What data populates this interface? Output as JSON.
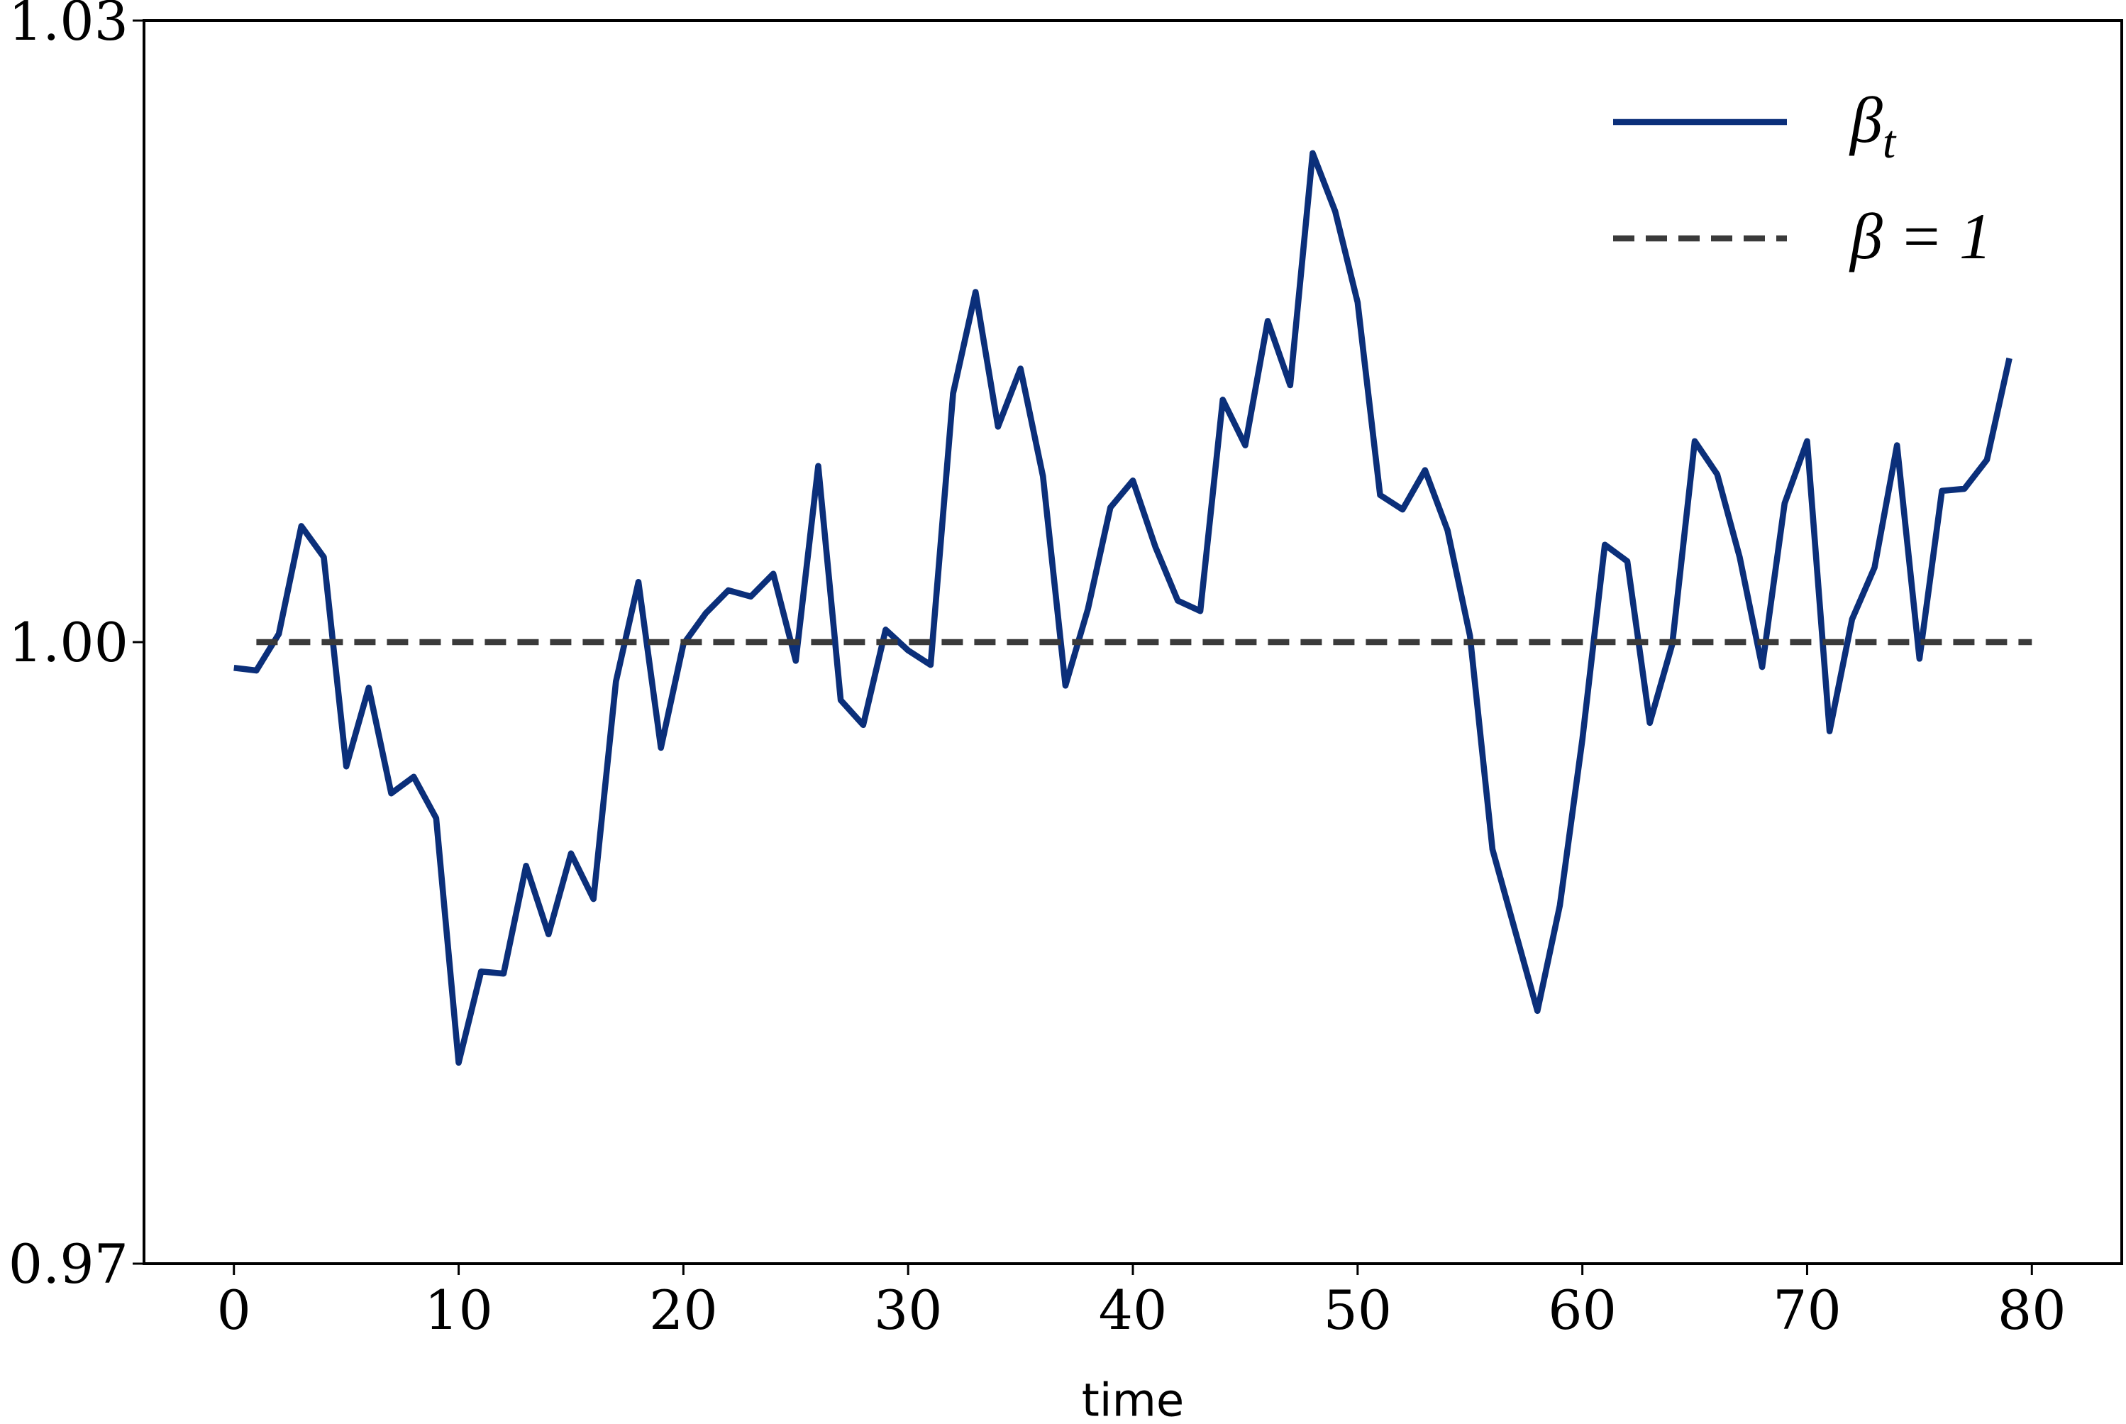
{
  "chart_data": {
    "type": "line",
    "xlabel": "time",
    "xlim": [
      -4,
      84
    ],
    "xticks": [
      0,
      10,
      20,
      30,
      40,
      50,
      60,
      70,
      80
    ],
    "ylim": [
      0.97,
      1.03
    ],
    "yticks": [
      0.97,
      {
        "value": 1,
        "label": "1.00"
      },
      1.03
    ],
    "grid": false,
    "legend_position": "upper right",
    "series": [
      {
        "name": "β_t",
        "color": "#0b2f7a",
        "linestyle": "solid",
        "x": [
          0,
          1,
          2,
          3,
          4,
          5,
          6,
          7,
          8,
          9,
          10,
          11,
          12,
          13,
          14,
          15,
          16,
          17,
          18,
          19,
          20,
          21,
          22,
          23,
          24,
          25,
          26,
          27,
          28,
          29,
          30,
          31,
          32,
          33,
          34,
          35,
          36,
          37,
          38,
          39,
          40,
          41,
          42,
          43,
          44,
          45,
          46,
          47,
          48,
          49,
          50,
          51,
          52,
          53,
          54,
          55,
          56,
          57,
          58,
          59,
          60,
          61,
          62,
          63,
          64,
          65,
          66,
          67,
          68,
          69,
          70,
          71,
          72,
          73,
          74,
          75,
          76,
          77,
          78,
          79
        ],
        "values": [
          0.99876,
          0.99863,
          1.0004,
          1.0056,
          1.0041,
          0.994,
          0.9978,
          0.9927,
          0.9935,
          0.9915,
          0.9797,
          0.9841,
          0.984,
          0.9892,
          0.9859,
          0.9898,
          0.9876,
          0.9981,
          1.0029,
          0.9949,
          0.9999,
          1.0014,
          1.0025,
          1.0022,
          1.0033,
          0.9991,
          1.0085,
          0.9972,
          0.996,
          1.0006,
          0.9996,
          0.9989,
          1.012,
          1.0169,
          1.0104,
          1.0132,
          1.008,
          0.9979,
          1.0016,
          1.0065,
          1.0078,
          1.0046,
          1.002,
          1.0015,
          1.0117,
          1.0095,
          1.0155,
          1.0124,
          1.0236,
          1.0208,
          1.0164,
          1.0071,
          1.0064,
          1.0083,
          1.0054,
          1.0003,
          0.99,
          0.9861,
          0.9822,
          0.9873,
          0.9953,
          1.0047,
          1.0039,
          0.9961,
          0.9999,
          1.0097,
          1.0081,
          1.0041,
          0.9988,
          1.0067,
          1.0097,
          0.9957,
          1.0011,
          1.0036,
          1.0095,
          0.9992,
          1.0073,
          1.0074,
          1.0088,
          1.0137
        ]
      },
      {
        "name": "β = 1",
        "color": "#3a3a3a",
        "linestyle": "dashed",
        "x": [
          1,
          80
        ],
        "values": [
          1,
          1
        ]
      }
    ]
  }
}
